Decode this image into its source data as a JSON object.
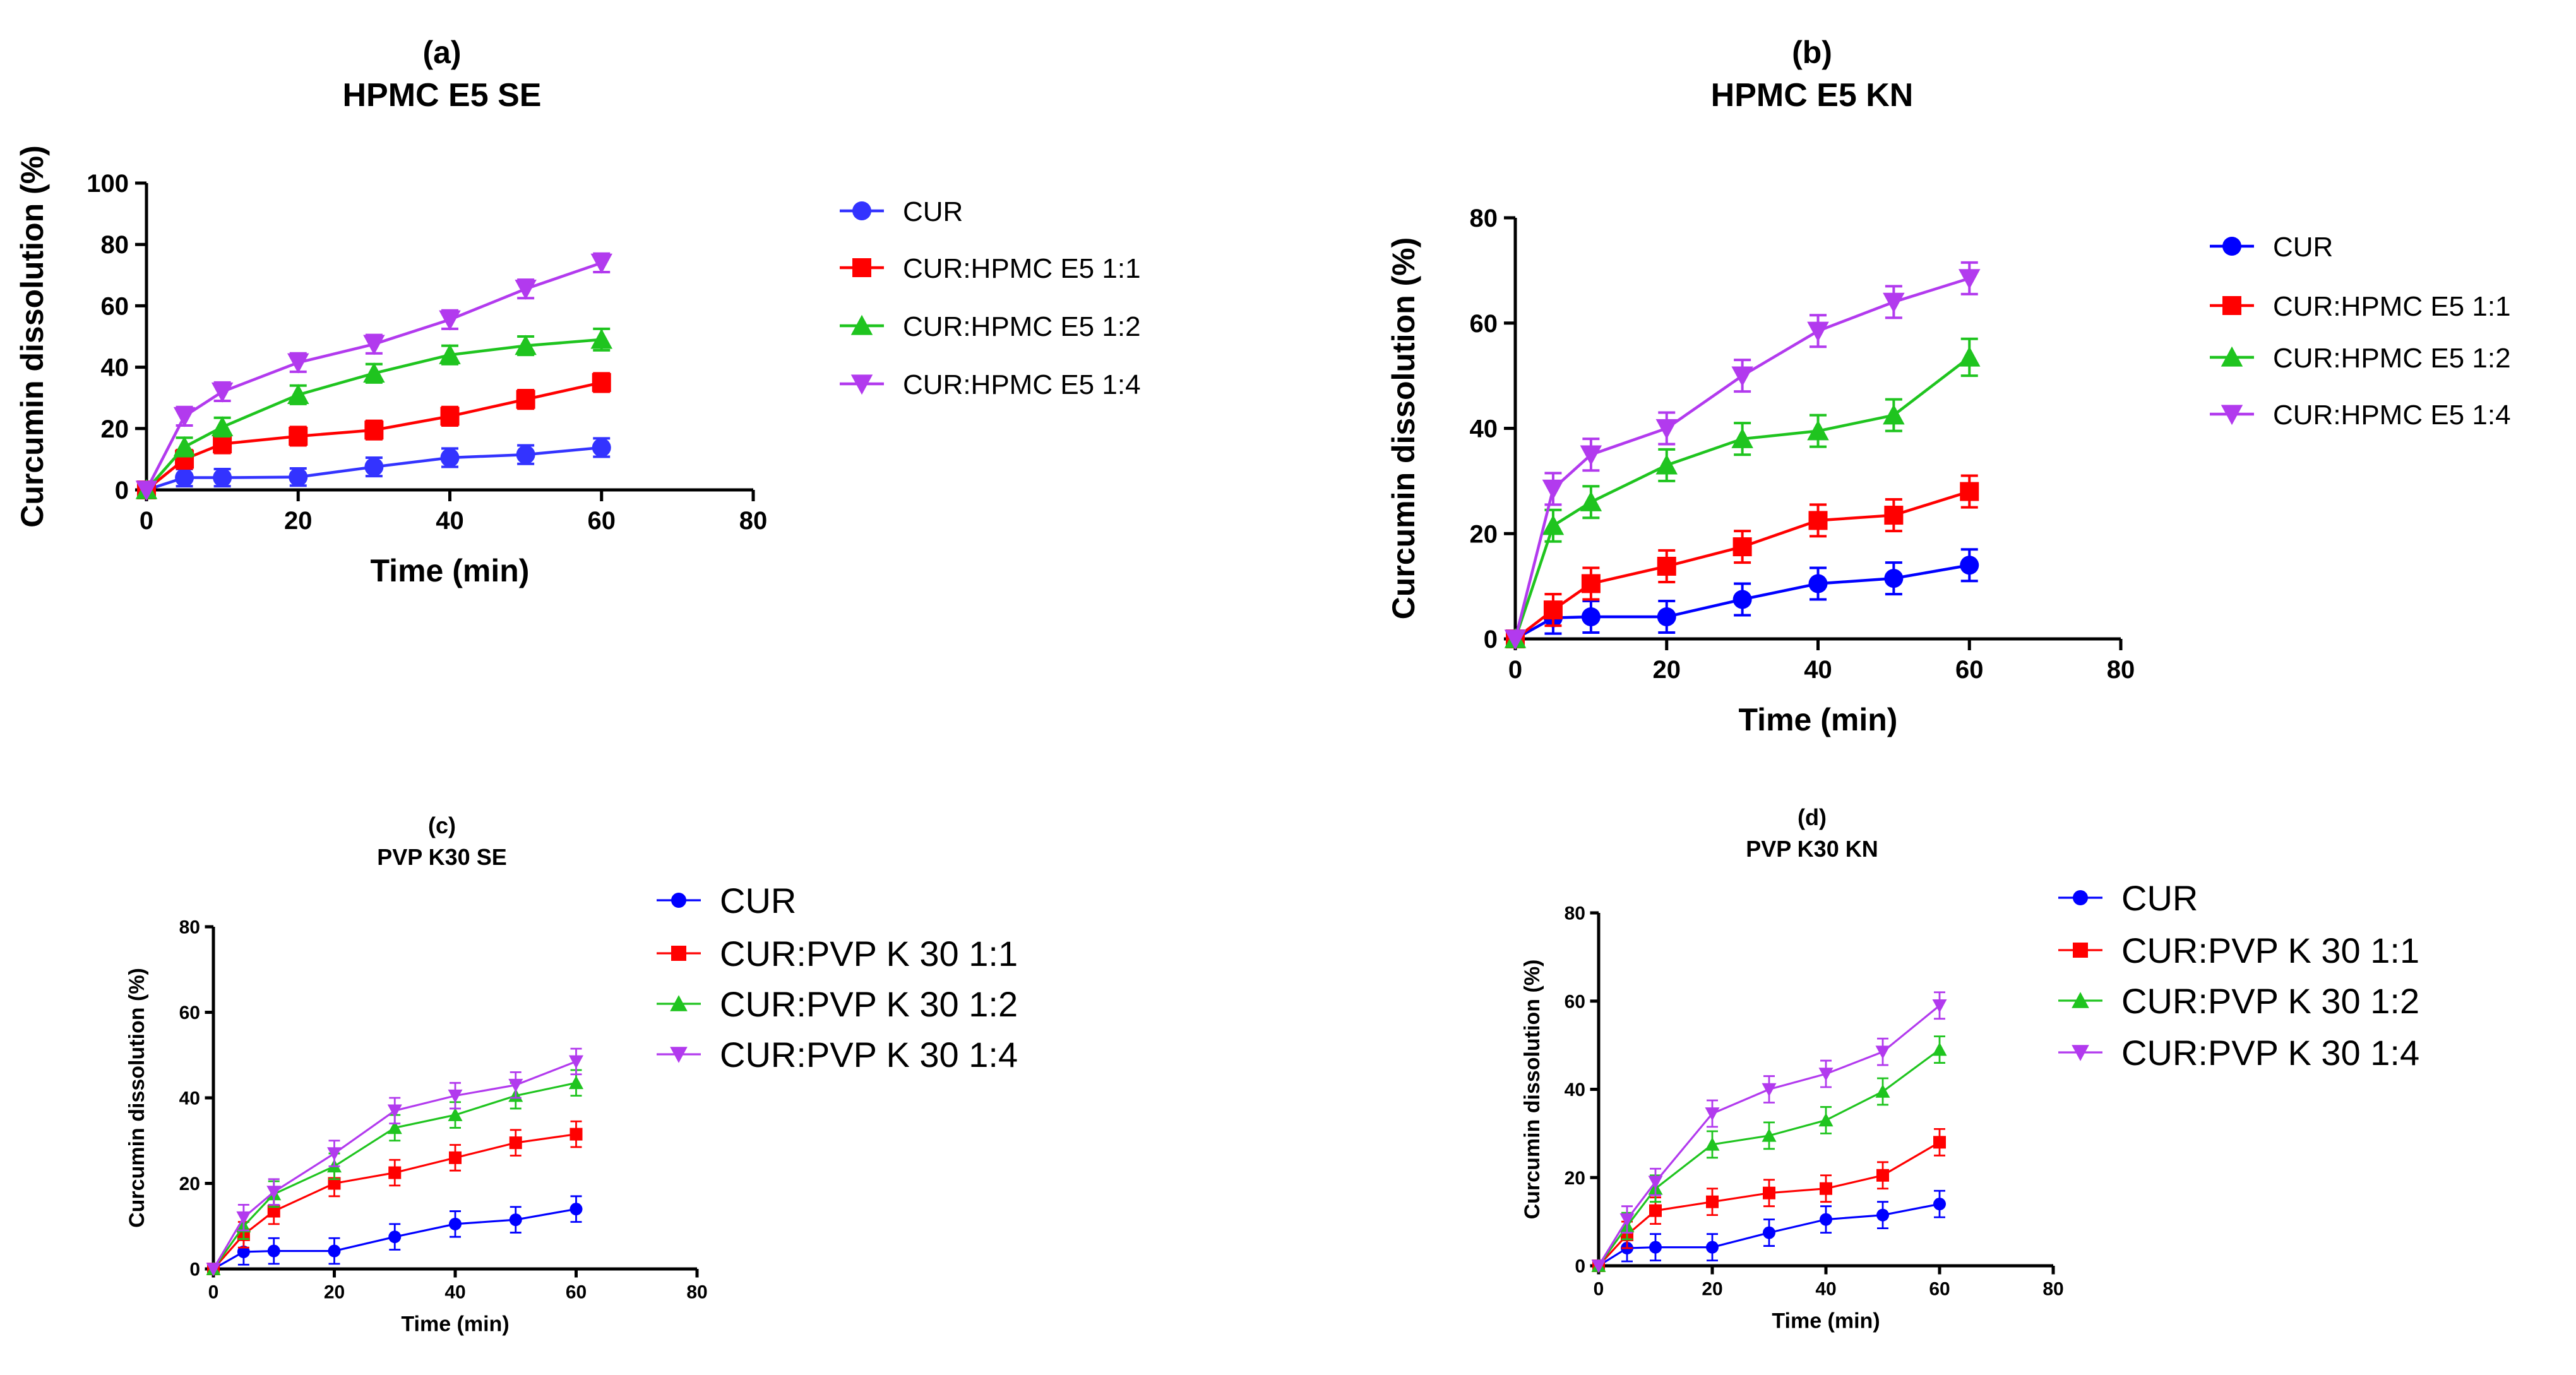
{
  "colors": {
    "cur": "#3333ff",
    "r11": "#ff0000",
    "r12": "#1fc41f",
    "r14": "#b23aee"
  },
  "chart_data": [
    {
      "panel": "(a)",
      "title": "HPMC E5 SE",
      "type": "line",
      "xlabel": "Time (min)",
      "ylabel": "Curcumin dissolution (%)",
      "xlim": [
        0,
        80
      ],
      "ylim": [
        0,
        100
      ],
      "xticks": [
        0,
        20,
        40,
        60,
        80
      ],
      "yticks": [
        0,
        20,
        40,
        60,
        80,
        100
      ],
      "legend_position": "right",
      "x": [
        0,
        5,
        10,
        20,
        30,
        40,
        50,
        60
      ],
      "series": [
        {
          "name": "CUR",
          "marker": "circle",
          "color": "#3333ff",
          "values": [
            0,
            4,
            4,
            4.2,
            7.5,
            10.5,
            11.5,
            13.8
          ],
          "err": [
            0,
            2.8,
            2.8,
            2.8,
            3,
            3,
            3,
            3
          ]
        },
        {
          "name": "CUR:HPMC E5 1:1",
          "marker": "square",
          "color": "#ff0000",
          "values": [
            0,
            10,
            15,
            17.5,
            19.5,
            24,
            29.5,
            35
          ],
          "err": [
            0,
            3,
            3,
            3,
            3,
            3,
            3,
            3
          ]
        },
        {
          "name": "CUR:HPMC E5 1:2",
          "marker": "triangle",
          "color": "#1fc41f",
          "values": [
            0,
            14,
            20.5,
            31,
            38,
            44,
            47,
            49
          ],
          "err": [
            0,
            3,
            3,
            3,
            3,
            3,
            3,
            3.5
          ]
        },
        {
          "name": "CUR:HPMC E5 1:4",
          "marker": "triangle-down",
          "color": "#b23aee",
          "values": [
            0,
            24,
            32,
            41.5,
            47.5,
            55.5,
            65.5,
            74
          ],
          "err": [
            0,
            3,
            3,
            3,
            3,
            3,
            3,
            3
          ]
        }
      ]
    },
    {
      "panel": "(b)",
      "title": "HPMC E5 KN",
      "type": "line",
      "xlabel": "Time (min)",
      "ylabel": "Curcumin dissolution (%)",
      "xlim": [
        0,
        80
      ],
      "ylim": [
        0,
        80
      ],
      "xticks": [
        0,
        20,
        40,
        60,
        80
      ],
      "yticks": [
        0,
        20,
        40,
        60,
        80
      ],
      "legend_position": "right",
      "x": [
        0,
        5,
        10,
        20,
        30,
        40,
        50,
        60
      ],
      "series": [
        {
          "name": "CUR",
          "marker": "circle",
          "color": "#0000ff",
          "values": [
            0,
            4,
            4.2,
            4.2,
            7.5,
            10.5,
            11.5,
            14
          ],
          "err": [
            0,
            3,
            3,
            3,
            3,
            3,
            3,
            3
          ]
        },
        {
          "name": "CUR:HPMC E5 1:1",
          "marker": "square",
          "color": "#ff0000",
          "values": [
            0,
            5.5,
            10.5,
            13.8,
            17.5,
            22.5,
            23.5,
            28
          ],
          "err": [
            0,
            3,
            3,
            3,
            3,
            3,
            3,
            3
          ]
        },
        {
          "name": "CUR:HPMC E5 1:2",
          "marker": "triangle",
          "color": "#1fc41f",
          "values": [
            0,
            21.5,
            26,
            33,
            38,
            39.5,
            42.5,
            53.5
          ],
          "err": [
            0,
            3,
            3,
            3,
            3,
            3,
            3,
            3.5
          ]
        },
        {
          "name": "CUR:HPMC E5 1:4",
          "marker": "triangle-down",
          "color": "#b23aee",
          "values": [
            0,
            28.5,
            35,
            40,
            50,
            58.5,
            64,
            68.5
          ],
          "err": [
            0,
            3,
            3,
            3,
            3,
            3,
            3,
            3
          ]
        }
      ]
    },
    {
      "panel": "(c)",
      "title": "PVP K30 SE",
      "type": "line",
      "xlabel": "Time (min)",
      "ylabel": "Curcumin dissolution (%)",
      "xlim": [
        0,
        80
      ],
      "ylim": [
        0,
        80
      ],
      "xticks": [
        0,
        20,
        40,
        60,
        80
      ],
      "yticks": [
        0,
        20,
        40,
        60,
        80
      ],
      "legend_position": "right",
      "x": [
        0,
        5,
        10,
        20,
        30,
        40,
        50,
        60
      ],
      "series": [
        {
          "name": "CUR",
          "marker": "circle",
          "color": "#0000ff",
          "values": [
            0,
            4,
            4.2,
            4.2,
            7.5,
            10.5,
            11.5,
            14
          ],
          "err": [
            0,
            3,
            3,
            3,
            3,
            3,
            3,
            3
          ]
        },
        {
          "name": "CUR:PVP K 30 1:1",
          "marker": "square",
          "color": "#ff0000",
          "values": [
            0,
            8,
            13.5,
            20,
            22.5,
            26,
            29.5,
            31.5
          ],
          "err": [
            0,
            3,
            3,
            3,
            3,
            3,
            3,
            3
          ]
        },
        {
          "name": "CUR:PVP K 30 1:2",
          "marker": "triangle",
          "color": "#1fc41f",
          "values": [
            0,
            10,
            17.5,
            24,
            33,
            36,
            40.5,
            43.5
          ],
          "err": [
            0,
            3,
            3,
            3,
            3,
            3,
            3,
            3
          ]
        },
        {
          "name": "CUR:PVP K 30 1:4",
          "marker": "triangle-down",
          "color": "#b23aee",
          "values": [
            0,
            12,
            18,
            27,
            37,
            40.5,
            43,
            48.5
          ],
          "err": [
            0,
            3,
            3,
            3,
            3,
            3,
            3,
            3
          ]
        }
      ]
    },
    {
      "panel": "(d)",
      "title": "PVP K30 KN",
      "type": "line",
      "xlabel": "Time (min)",
      "ylabel": "Curcumin dissolution (%)",
      "xlim": [
        0,
        80
      ],
      "ylim": [
        0,
        80
      ],
      "xticks": [
        0,
        20,
        40,
        60,
        80
      ],
      "yticks": [
        0,
        20,
        40,
        60,
        80
      ],
      "legend_position": "right",
      "x": [
        0,
        5,
        10,
        20,
        30,
        40,
        50,
        60
      ],
      "series": [
        {
          "name": "CUR",
          "marker": "circle",
          "color": "#0000ff",
          "values": [
            0,
            4,
            4.2,
            4.2,
            7.5,
            10.5,
            11.5,
            14
          ],
          "err": [
            0,
            3,
            3,
            3,
            3,
            3,
            3,
            3
          ]
        },
        {
          "name": "CUR:PVP K 30 1:1",
          "marker": "square",
          "color": "#ff0000",
          "values": [
            0,
            7,
            12.5,
            14.5,
            16.5,
            17.5,
            20.5,
            28
          ],
          "err": [
            0,
            3,
            3,
            3,
            3,
            3,
            3,
            3
          ]
        },
        {
          "name": "CUR:PVP K 30 1:2",
          "marker": "triangle",
          "color": "#1fc41f",
          "values": [
            0,
            9,
            17.5,
            27.5,
            29.5,
            33,
            39.5,
            49
          ],
          "err": [
            0,
            3,
            3,
            3,
            3,
            3,
            3,
            3
          ]
        },
        {
          "name": "CUR:PVP K 30 1:4",
          "marker": "triangle-down",
          "color": "#b23aee",
          "values": [
            0,
            10.5,
            19,
            34.5,
            40,
            43.5,
            48.5,
            59
          ],
          "err": [
            0,
            3,
            3,
            3,
            3,
            3,
            3,
            3
          ]
        }
      ]
    }
  ]
}
